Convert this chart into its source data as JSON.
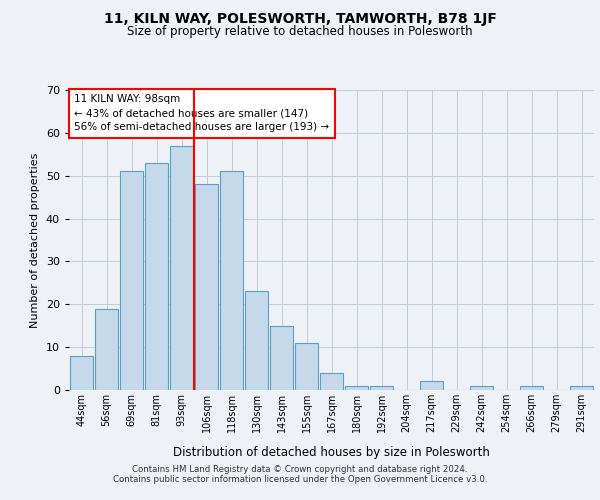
{
  "title1": "11, KILN WAY, POLESWORTH, TAMWORTH, B78 1JF",
  "title2": "Size of property relative to detached houses in Polesworth",
  "xlabel": "Distribution of detached houses by size in Polesworth",
  "ylabel": "Number of detached properties",
  "categories": [
    "44sqm",
    "56sqm",
    "69sqm",
    "81sqm",
    "93sqm",
    "106sqm",
    "118sqm",
    "130sqm",
    "143sqm",
    "155sqm",
    "167sqm",
    "180sqm",
    "192sqm",
    "204sqm",
    "217sqm",
    "229sqm",
    "242sqm",
    "254sqm",
    "266sqm",
    "279sqm",
    "291sqm"
  ],
  "values": [
    8,
    19,
    51,
    53,
    57,
    48,
    51,
    23,
    15,
    11,
    4,
    1,
    1,
    0,
    2,
    0,
    1,
    0,
    1,
    0,
    1
  ],
  "bar_color": "#c5d9ea",
  "bar_edge_color": "#5b9ec9",
  "annotation_text": "11 KILN WAY: 98sqm\n← 43% of detached houses are smaller (147)\n56% of semi-detached houses are larger (193) →",
  "ylim": [
    0,
    70
  ],
  "yticks": [
    0,
    10,
    20,
    30,
    40,
    50,
    60,
    70
  ],
  "footer1": "Contains HM Land Registry data © Crown copyright and database right 2024.",
  "footer2": "Contains public sector information licensed under the Open Government Licence v3.0.",
  "background_color": "#eef2f7",
  "plot_bg_color": "#eef2f7",
  "grid_color": "#c0ccd8"
}
